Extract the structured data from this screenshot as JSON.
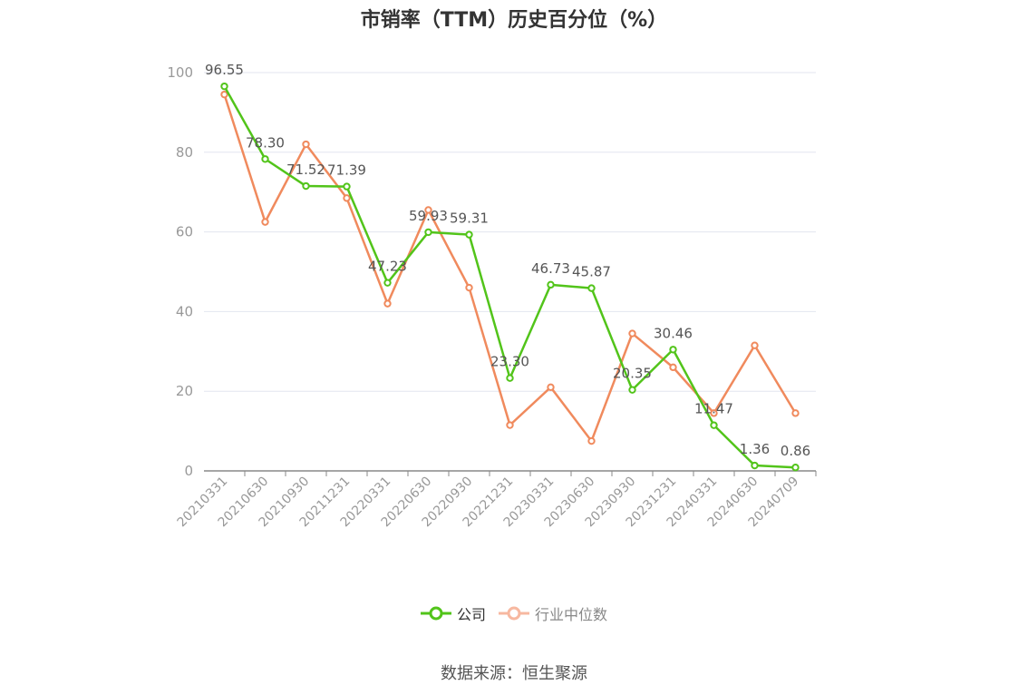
{
  "chart_data": {
    "type": "line",
    "title": "市销率（TTM）历史百分位（%）",
    "categories": [
      "20210331",
      "20210630",
      "20210930",
      "20211231",
      "20220331",
      "20220630",
      "20220930",
      "20221231",
      "20230331",
      "20230630",
      "20230930",
      "20231231",
      "20240331",
      "20240630",
      "20240709"
    ],
    "ylim": [
      0,
      100
    ],
    "yticks": [
      0,
      20,
      40,
      60,
      80,
      100
    ],
    "grid": true,
    "legend_position": "bottom",
    "series": [
      {
        "name": "公司",
        "color": "#52c41a",
        "values": [
          96.55,
          78.3,
          71.52,
          71.39,
          47.23,
          59.93,
          59.31,
          23.3,
          46.73,
          45.87,
          20.35,
          30.46,
          11.47,
          1.36,
          0.86
        ],
        "labels": [
          "96.55",
          "78.30",
          "71.52",
          "71.39",
          "47.23",
          "59.93",
          "59.31",
          "23.30",
          "46.73",
          "45.87",
          "20.35",
          "30.46",
          "11.47",
          "1.36",
          "0.86"
        ]
      },
      {
        "name": "行业中位数",
        "color": "#f08a5d",
        "values": [
          94.5,
          62.5,
          82.0,
          68.5,
          42.0,
          65.5,
          46.0,
          11.5,
          21.0,
          7.5,
          34.5,
          26.0,
          14.5,
          31.5,
          14.5
        ]
      }
    ]
  },
  "source": "数据来源：恒生聚源"
}
